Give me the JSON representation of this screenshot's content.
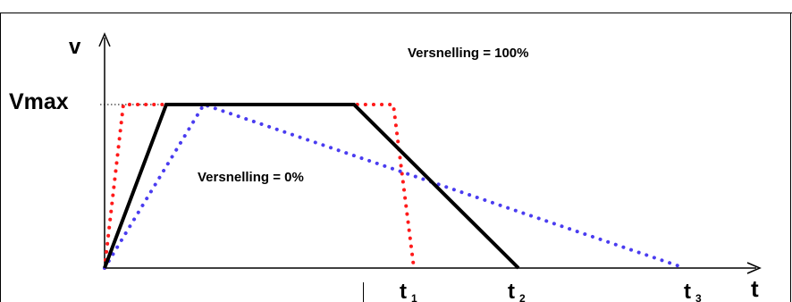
{
  "labels": {
    "y_axis": "v",
    "x_axis": "t",
    "vmax": "Vmax",
    "accel_100": "Versnelling = 100%",
    "accel_0": "Versnelling = 0%",
    "t1_base": "t",
    "t1_sub": "1",
    "t2_base": "t",
    "t2_sub": "2",
    "t3_base": "t",
    "t3_sub": "3"
  },
  "colors": {
    "axes": "#000000",
    "profile_solid": "#000000",
    "profile_red": "#ff1a1a",
    "profile_blue": "#4a3cf0",
    "border": "#000000"
  }
}
